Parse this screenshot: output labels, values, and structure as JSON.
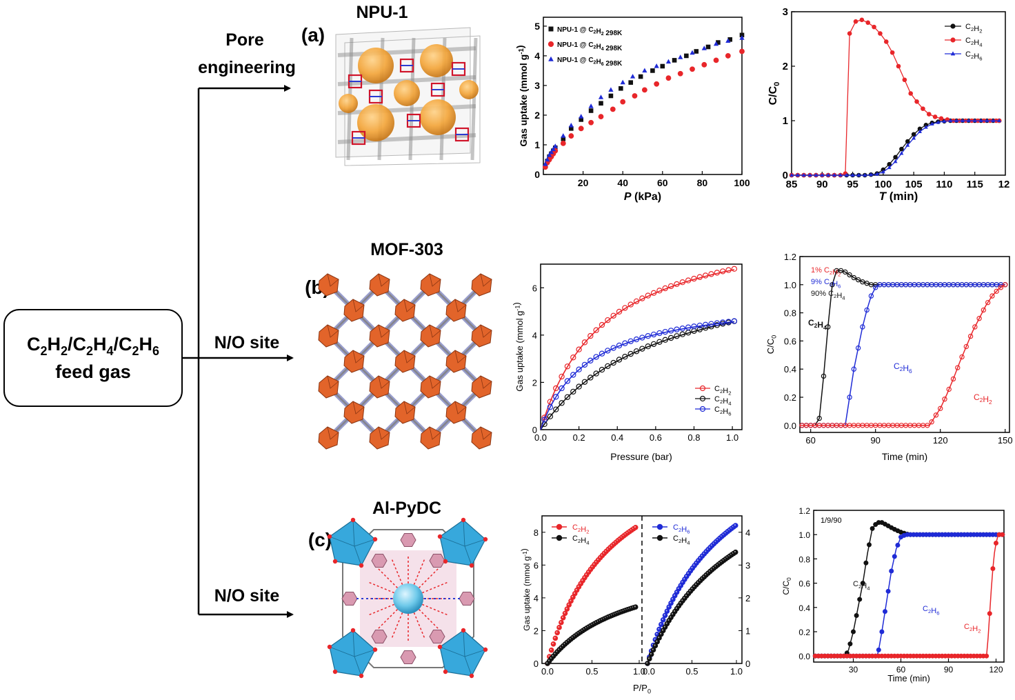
{
  "flow": {
    "feed_line1": "C2H2/C2H4/C2H6",
    "feed_line2": "feed gas",
    "branch_a_line1": "Pore",
    "branch_a_line2": "engineering",
    "branch_b": "N/O site",
    "branch_c": "N/O site"
  },
  "rows": [
    {
      "label": "(a)",
      "material": "NPU-1"
    },
    {
      "label": "(b)",
      "material": "MOF-303"
    },
    {
      "label": "(c)",
      "material": "Al-PyDC"
    }
  ],
  "colors": {
    "black": "#111111",
    "red": "#e8262a",
    "blue": "#1f2bd6",
    "orange": "#f3a53a",
    "cyan": "#37a8dc"
  },
  "chart_data": [
    {
      "id": "a-isotherm",
      "type": "scatter",
      "xlabel": "P (kPa)",
      "ylabel": "Gas uptake (mmol g⁻¹)",
      "xlim": [
        0,
        100
      ],
      "ylim": [
        0,
        5.3
      ],
      "xticks": [
        20,
        40,
        60,
        80,
        100
      ],
      "yticks": [
        0,
        1,
        2,
        3,
        4,
        5
      ],
      "legend_position": "top-left",
      "series": [
        {
          "name": "NPU-1 @ C₂H₂ 298K",
          "color": "black",
          "marker": "square",
          "x": [
            1,
            2,
            3,
            4,
            5,
            6,
            10,
            14,
            19,
            24,
            29,
            34,
            39,
            44,
            49,
            55,
            60,
            66,
            72,
            77,
            83,
            88,
            94,
            100
          ],
          "y": [
            0.3,
            0.45,
            0.6,
            0.7,
            0.8,
            0.9,
            1.2,
            1.55,
            1.85,
            2.15,
            2.4,
            2.65,
            2.9,
            3.1,
            3.3,
            3.5,
            3.65,
            3.85,
            4.0,
            4.15,
            4.3,
            4.45,
            4.55,
            4.7
          ]
        },
        {
          "name": "NPU-1 @ C₂H₄ 298K",
          "color": "red",
          "marker": "circle",
          "x": [
            1,
            2,
            3,
            4,
            5,
            6,
            10,
            14,
            19,
            24,
            29,
            35,
            40,
            46,
            51,
            57,
            63,
            69,
            75,
            81,
            87,
            93,
            100
          ],
          "y": [
            0.25,
            0.4,
            0.5,
            0.6,
            0.7,
            0.8,
            1.05,
            1.3,
            1.55,
            1.75,
            1.95,
            2.2,
            2.45,
            2.65,
            2.85,
            3.05,
            3.25,
            3.4,
            3.55,
            3.7,
            3.85,
            4.0,
            4.15
          ]
        },
        {
          "name": "NPU-1 @ C₂H₆ 298K",
          "color": "blue",
          "marker": "triangle",
          "x": [
            1,
            2,
            3,
            4,
            5,
            6,
            10,
            14,
            19,
            24,
            29,
            34,
            40,
            45,
            51,
            57,
            63,
            69,
            75,
            81,
            87,
            93,
            100
          ],
          "y": [
            0.35,
            0.5,
            0.65,
            0.75,
            0.85,
            0.95,
            1.3,
            1.65,
            1.95,
            2.3,
            2.6,
            2.85,
            3.1,
            3.3,
            3.5,
            3.65,
            3.8,
            3.95,
            4.1,
            4.25,
            4.4,
            4.5,
            4.6
          ]
        }
      ]
    },
    {
      "id": "a-breakthrough",
      "type": "line",
      "xlabel": "T (min)",
      "ylabel": "C/C₀",
      "xlim": [
        85,
        120
      ],
      "ylim": [
        0,
        3
      ],
      "xticks": [
        85,
        90,
        95,
        100,
        105,
        110,
        115
      ],
      "xtick_last": "12",
      "yticks": [
        0,
        1,
        2,
        3
      ],
      "legend_position": "top-right",
      "series": [
        {
          "name": "C₂H₂",
          "color": "black",
          "marker": "circle",
          "x": [
            85,
            86,
            87,
            88,
            89,
            90,
            91,
            92,
            93,
            94,
            95,
            96,
            97,
            98,
            99,
            100,
            101,
            102,
            103,
            104,
            105,
            106,
            107,
            108,
            109,
            110,
            111,
            112,
            113,
            114,
            115,
            116,
            117,
            118,
            119
          ],
          "y": [
            0,
            0,
            0,
            0,
            0,
            0,
            0,
            0,
            0,
            0,
            0,
            0,
            0,
            0.01,
            0.03,
            0.1,
            0.2,
            0.33,
            0.48,
            0.62,
            0.75,
            0.85,
            0.92,
            0.96,
            0.98,
            0.99,
            1,
            1,
            1,
            1,
            1,
            1,
            1,
            1,
            1
          ]
        },
        {
          "name": "C₂H₄",
          "color": "red",
          "marker": "circle",
          "x": [
            85,
            86,
            87,
            88,
            89,
            90,
            91,
            92,
            93,
            93.8,
            94.5,
            95.5,
            96.5,
            97.5,
            98.5,
            99.5,
            100.5,
            101.5,
            102.5,
            103.5,
            104.5,
            105.5,
            106.5,
            107.5,
            108.5,
            109.5,
            110.5,
            111.5,
            112.5,
            113.5,
            114.5,
            115.5,
            116.5,
            117.5,
            118.5,
            119
          ],
          "y": [
            0,
            0,
            0,
            0,
            0,
            0,
            0,
            0,
            0,
            0.03,
            2.6,
            2.82,
            2.85,
            2.8,
            2.72,
            2.6,
            2.45,
            2.25,
            2.0,
            1.75,
            1.5,
            1.35,
            1.22,
            1.12,
            1.07,
            1.04,
            1.02,
            1,
            1,
            1,
            1,
            1,
            1,
            1,
            1,
            1
          ]
        },
        {
          "name": "C₂H₆",
          "color": "blue",
          "marker": "triangle",
          "x": [
            85,
            86,
            87,
            88,
            89,
            90,
            91,
            92,
            93,
            94,
            95,
            96,
            97,
            98,
            99,
            100,
            101,
            102,
            103,
            104,
            105,
            106,
            107,
            108,
            109,
            110,
            111,
            112,
            113,
            114,
            115,
            116,
            117,
            118,
            119
          ],
          "y": [
            0,
            0,
            0,
            0,
            0,
            0,
            0,
            0,
            0,
            0,
            0,
            0,
            0,
            0.01,
            0.02,
            0.06,
            0.14,
            0.25,
            0.4,
            0.55,
            0.68,
            0.8,
            0.88,
            0.94,
            0.97,
            0.99,
            1,
            1,
            1,
            1,
            1,
            1,
            1,
            1,
            1
          ]
        }
      ]
    },
    {
      "id": "b-isotherm",
      "type": "line",
      "xlabel": "Pressure (bar)",
      "ylabel": "Gas uptake (mmol g⁻¹)",
      "xlim": [
        0,
        1.05
      ],
      "ylim": [
        0,
        7
      ],
      "xticks": [
        0.0,
        0.2,
        0.4,
        0.6,
        0.8,
        1.0
      ],
      "yticks": [
        0,
        2,
        4,
        6
      ],
      "legend_position": "bottom-right",
      "series": [
        {
          "name": "C₂H₂",
          "color": "red",
          "model": "langmuir",
          "qmax": 9.0,
          "K": 3.0
        },
        {
          "name": "C₂H₄",
          "color": "black",
          "model": "langmuir",
          "qmax": 7.3,
          "K": 1.65
        },
        {
          "name": "C₂H₆",
          "color": "blue",
          "model": "langmuir",
          "qmax": 5.7,
          "K": 4.0
        }
      ]
    },
    {
      "id": "b-breakthrough",
      "type": "line",
      "xlabel": "Time (min)",
      "ylabel": "C/C₀",
      "xlim": [
        55,
        152
      ],
      "ylim": [
        -0.05,
        1.2
      ],
      "xticks": [
        60,
        90,
        120,
        150
      ],
      "yticks": [
        0.0,
        0.2,
        0.4,
        0.6,
        0.8,
        1.0,
        1.2
      ],
      "inset_labels": [
        "1% C₂H₂",
        "9% C₂H₆",
        "90% C₂H₄"
      ],
      "series": [
        {
          "name": "C₂H₄",
          "color": "black",
          "x": [
            55,
            60,
            62,
            64,
            66,
            68,
            70,
            72,
            74,
            76,
            78,
            80,
            84,
            88,
            92,
            100,
            110,
            120,
            130,
            140,
            150
          ],
          "y": [
            0,
            0,
            0,
            0.05,
            0.35,
            0.7,
            1.0,
            1.1,
            1.1,
            1.09,
            1.07,
            1.05,
            1.02,
            1.0,
            1.0,
            1.0,
            1.0,
            1.0,
            1.0,
            1.0,
            1.0
          ]
        },
        {
          "name": "C₂H₆",
          "color": "blue",
          "x": [
            55,
            60,
            70,
            76,
            78,
            80,
            82,
            84,
            86,
            88,
            90,
            92,
            96,
            100,
            110,
            120,
            130,
            140,
            150
          ],
          "y": [
            0,
            0,
            0,
            0,
            0.2,
            0.4,
            0.55,
            0.7,
            0.82,
            0.92,
            0.98,
            1.0,
            1.0,
            1.0,
            1.0,
            1.0,
            1.0,
            1.0,
            1.0
          ]
        },
        {
          "name": "C₂H₂",
          "color": "red",
          "x": [
            55,
            60,
            70,
            80,
            90,
            100,
            110,
            115,
            117,
            120,
            123,
            126,
            129,
            132,
            135,
            138,
            141,
            144,
            147,
            150
          ],
          "y": [
            0,
            0,
            0,
            0,
            0,
            0,
            0,
            0,
            0.05,
            0.12,
            0.22,
            0.33,
            0.45,
            0.56,
            0.67,
            0.76,
            0.85,
            0.92,
            0.97,
            1.0
          ]
        }
      ]
    },
    {
      "id": "c-isotherm",
      "type": "line",
      "xlabel": "P/P₀",
      "ylabel": "Gas uptake (mmol g⁻¹)",
      "left": {
        "xlim": [
          0,
          1
        ],
        "ylim": [
          0,
          9
        ],
        "yticks": [
          0,
          2,
          4,
          6,
          8
        ],
        "xticks": [
          0.0,
          0.5,
          1.0
        ],
        "series": [
          {
            "name": "C₂H₂",
            "color": "red",
            "model": "langmuir",
            "qmax": 14.5,
            "K": 1.35
          },
          {
            "name": "C₂H₄",
            "color": "black",
            "model": "langmuir",
            "qmax": 6.6,
            "K": 1.1
          }
        ]
      },
      "right": {
        "xlim": [
          0,
          1
        ],
        "ylim": [
          0,
          4.5
        ],
        "yticks": [
          0,
          1,
          2,
          3,
          4
        ],
        "xticks": [
          0.0,
          0.5,
          1.0
        ],
        "series": [
          {
            "name": "C₂H₆",
            "color": "blue",
            "model": "langmuir",
            "qmax": 7.9,
            "K": 1.15
          },
          {
            "name": "C₂H₄",
            "color": "black",
            "model": "langmuir",
            "qmax": 7.0,
            "K": 0.95
          }
        ]
      }
    },
    {
      "id": "c-breakthrough",
      "type": "line",
      "xlabel": "Time (min)",
      "ylabel": "C/C₀",
      "xlim": [
        5,
        125
      ],
      "ylim": [
        -0.05,
        1.2
      ],
      "xticks": [
        30,
        60,
        90,
        120
      ],
      "yticks": [
        0.0,
        0.2,
        0.4,
        0.6,
        0.8,
        1.0,
        1.2
      ],
      "inset_labels": [
        "1/9/90"
      ],
      "series": [
        {
          "name": "C₂H₄",
          "color": "black",
          "x": [
            5,
            10,
            20,
            25,
            27,
            30,
            33,
            36,
            39,
            42,
            45,
            48,
            51,
            55,
            60,
            65,
            70,
            80,
            90,
            100,
            110,
            120,
            124
          ],
          "y": [
            0,
            0,
            0,
            0,
            0.05,
            0.2,
            0.4,
            0.6,
            0.85,
            1.05,
            1.1,
            1.1,
            1.08,
            1.05,
            1.02,
            1.0,
            1.0,
            1.0,
            1.0,
            1.0,
            1.0,
            1.0,
            1.0
          ]
        },
        {
          "name": "C₂H₆",
          "color": "blue",
          "x": [
            5,
            10,
            20,
            30,
            40,
            45,
            46,
            48,
            51,
            54,
            57,
            60,
            63,
            70,
            80,
            90,
            100,
            110,
            120,
            124
          ],
          "y": [
            0,
            0,
            0,
            0,
            0,
            0,
            0.05,
            0.2,
            0.45,
            0.7,
            0.88,
            0.98,
            1.0,
            1.0,
            1.0,
            1.0,
            1.0,
            1.0,
            1.0,
            1.0
          ]
        },
        {
          "name": "C₂H₂",
          "color": "red",
          "x": [
            5,
            10,
            20,
            30,
            40,
            50,
            60,
            70,
            80,
            90,
            100,
            114,
            115,
            116,
            117,
            118,
            119,
            120,
            121,
            122,
            124
          ],
          "y": [
            0,
            0,
            0,
            0,
            0,
            0,
            0,
            0,
            0,
            0,
            0,
            0,
            0.15,
            0.35,
            0.55,
            0.72,
            0.85,
            0.93,
            0.98,
            1.0,
            1.0
          ]
        }
      ]
    }
  ]
}
